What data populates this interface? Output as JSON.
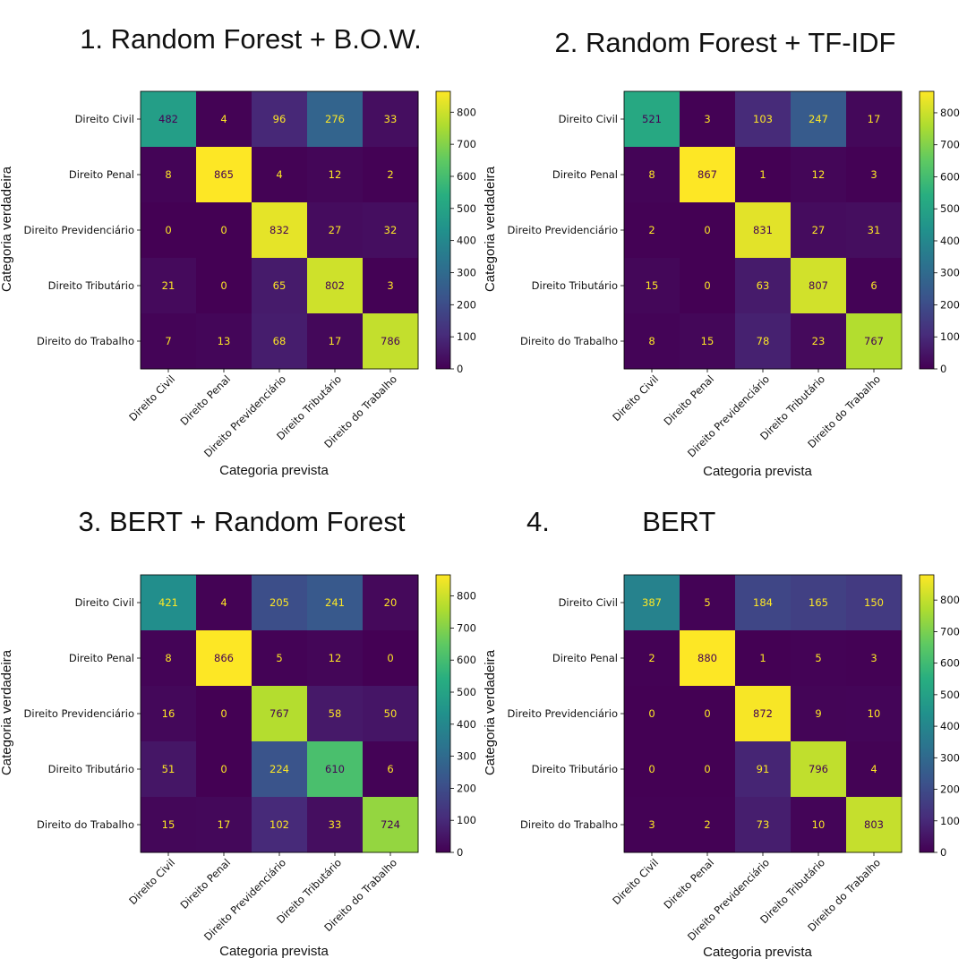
{
  "figure": {
    "class_labels": [
      "Direito Civil",
      "Direito Penal",
      "Direito Previdenciário",
      "Direito Tributário",
      "Direito do Trabalho"
    ],
    "xlabel": "Categoria prevista",
    "ylabel": "Categoria verdadeira",
    "colormap": "viridis",
    "colorbar_ticks": [
      0,
      100,
      200,
      300,
      400,
      500,
      600,
      700,
      800
    ]
  },
  "chart_data": [
    {
      "type": "heatmap",
      "title": "1. Random Forest + B.O.W.",
      "xlabel": "Categoria prevista",
      "ylabel": "Categoria verdadeira",
      "categories": [
        "Direito Civil",
        "Direito Penal",
        "Direito Previdenciário",
        "Direito Tributário",
        "Direito do Trabalho"
      ],
      "matrix": [
        [
          482,
          4,
          96,
          276,
          33
        ],
        [
          8,
          865,
          4,
          12,
          2
        ],
        [
          0,
          0,
          832,
          27,
          32
        ],
        [
          21,
          0,
          65,
          802,
          3
        ],
        [
          7,
          13,
          68,
          17,
          786
        ]
      ],
      "colorbar": {
        "min": 0,
        "max": 865,
        "ticks": [
          0,
          100,
          200,
          300,
          400,
          500,
          600,
          700,
          800
        ]
      }
    },
    {
      "type": "heatmap",
      "title": "2. Random Forest + TF-IDF",
      "xlabel": "Categoria prevista",
      "ylabel": "Categoria verdadeira",
      "categories": [
        "Direito Civil",
        "Direito Penal",
        "Direito Previdenciário",
        "Direito Tributário",
        "Direito do Trabalho"
      ],
      "matrix": [
        [
          521,
          3,
          103,
          247,
          17
        ],
        [
          8,
          867,
          1,
          12,
          3
        ],
        [
          2,
          0,
          831,
          27,
          31
        ],
        [
          15,
          0,
          63,
          807,
          6
        ],
        [
          8,
          15,
          78,
          23,
          767
        ]
      ],
      "colorbar": {
        "min": 0,
        "max": 867,
        "ticks": [
          0,
          100,
          200,
          300,
          400,
          500,
          600,
          700,
          800
        ]
      }
    },
    {
      "type": "heatmap",
      "title": "3. BERT + Random Forest",
      "xlabel": "Categoria prevista",
      "ylabel": "Categoria verdadeira",
      "categories": [
        "Direito Civil",
        "Direito Penal",
        "Direito Previdenciário",
        "Direito Tributário",
        "Direito do Trabalho"
      ],
      "matrix": [
        [
          421,
          4,
          205,
          241,
          20
        ],
        [
          8,
          866,
          5,
          12,
          0
        ],
        [
          16,
          0,
          767,
          58,
          50
        ],
        [
          51,
          0,
          224,
          610,
          6
        ],
        [
          15,
          17,
          102,
          33,
          724
        ]
      ],
      "colorbar": {
        "min": 0,
        "max": 866,
        "ticks": [
          0,
          100,
          200,
          300,
          400,
          500,
          600,
          700,
          800
        ]
      }
    },
    {
      "type": "heatmap",
      "title": "4.            BERT",
      "xlabel": "Categoria prevista",
      "ylabel": "Categoria verdadeira",
      "categories": [
        "Direito Civil",
        "Direito Penal",
        "Direito Previdenciário",
        "Direito Tributário",
        "Direito do Trabalho"
      ],
      "matrix": [
        [
          387,
          5,
          184,
          165,
          150
        ],
        [
          2,
          880,
          1,
          5,
          3
        ],
        [
          0,
          0,
          872,
          9,
          10
        ],
        [
          0,
          0,
          91,
          796,
          4
        ],
        [
          3,
          2,
          73,
          10,
          803
        ]
      ],
      "colorbar": {
        "min": 0,
        "max": 880,
        "ticks": [
          0,
          100,
          200,
          300,
          400,
          500,
          600,
          700,
          800
        ]
      }
    }
  ]
}
